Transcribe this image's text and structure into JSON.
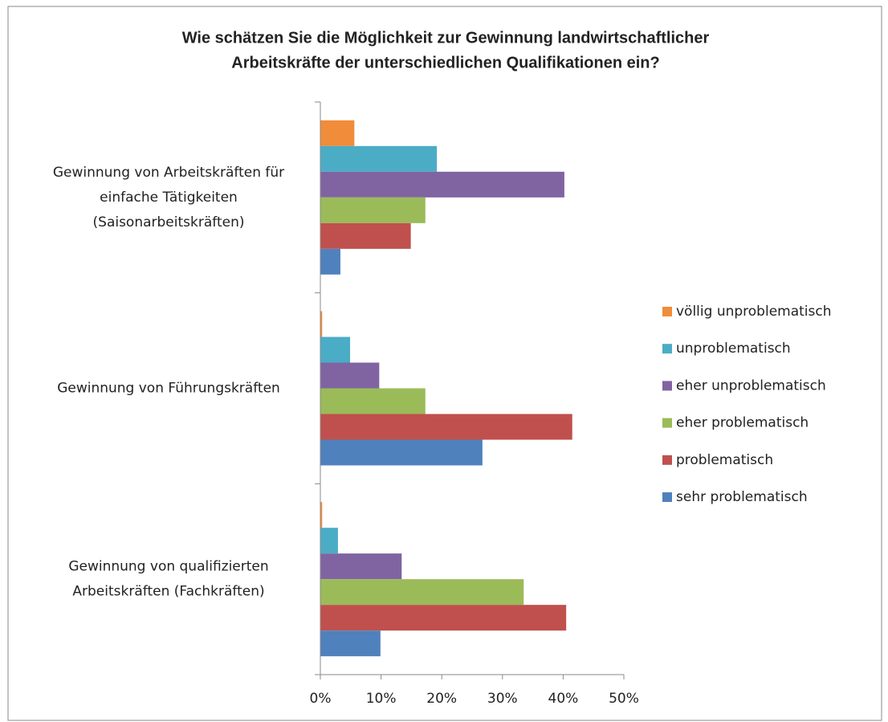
{
  "chart_data": {
    "type": "hbar",
    "title": [
      "Wie schätzen Sie die Möglichkeit zur Gewinnung landwirtschaftlicher",
      "Arbeitskräfte der unterschiedlichen Qualifikationen ein?"
    ],
    "categories": [
      [
        "Gewinnung von Arbeitskräften für",
        "einfache Tätigkeiten",
        "(Saisonarbeitskräften)"
      ],
      [
        "Gewinnung von Führungskräften"
      ],
      [
        "Gewinnung von qualifizierten",
        "Arbeitskräften (Fachkräften)"
      ]
    ],
    "series": [
      {
        "name": "völlig unproblematisch",
        "color": "#F08C3A",
        "values": [
          5.6,
          0.3,
          0.3
        ]
      },
      {
        "name": "unproblematisch",
        "color": "#4BACC6",
        "values": [
          19.2,
          4.9,
          2.9
        ]
      },
      {
        "name": "eher unproblematisch",
        "color": "#8064A2",
        "values": [
          40.2,
          9.7,
          13.4
        ]
      },
      {
        "name": "eher problematisch",
        "color": "#9BBB59",
        "values": [
          17.3,
          17.3,
          33.5
        ]
      },
      {
        "name": "problematisch",
        "color": "#C0504D",
        "values": [
          14.9,
          41.5,
          40.5
        ]
      },
      {
        "name": "sehr problematisch",
        "color": "#4F81BD",
        "values": [
          3.3,
          26.7,
          9.9
        ]
      }
    ],
    "xlim": [
      0,
      50
    ],
    "xticks": [
      {
        "value": 0,
        "label": "0%"
      },
      {
        "value": 10,
        "label": "10%"
      },
      {
        "value": 20,
        "label": "20%"
      },
      {
        "value": 30,
        "label": "30%"
      },
      {
        "value": 40,
        "label": "40%"
      },
      {
        "value": 50,
        "label": "50%"
      }
    ],
    "legend": "right"
  }
}
